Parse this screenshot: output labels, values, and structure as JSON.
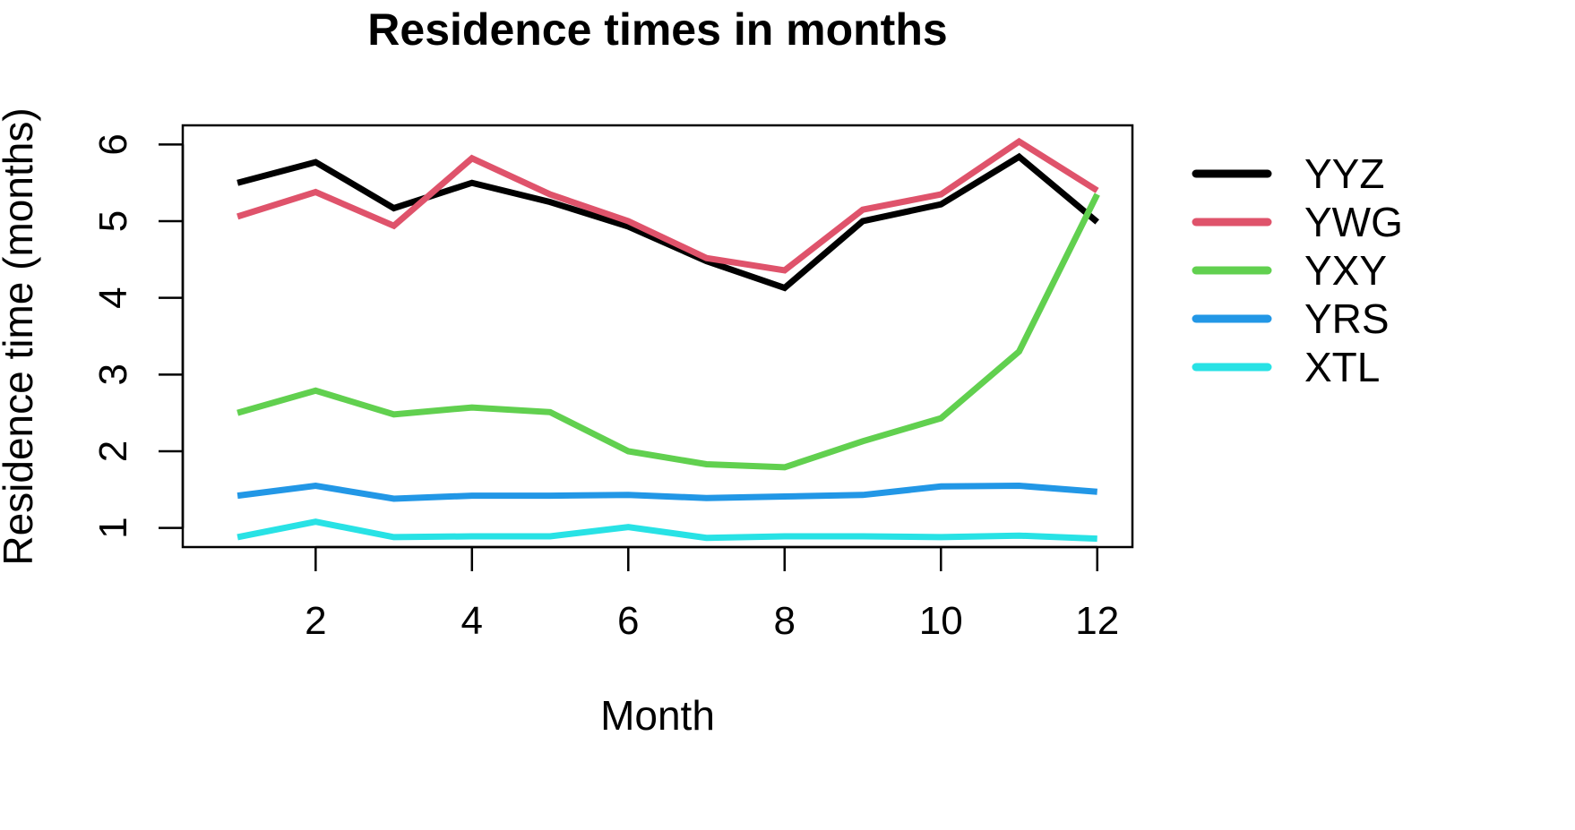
{
  "chart_data": {
    "type": "line",
    "title": "Residence times in months",
    "xlabel": "Month",
    "ylabel": "Residence time (months)",
    "x": [
      1,
      2,
      3,
      4,
      5,
      6,
      7,
      8,
      9,
      10,
      11,
      12
    ],
    "x_ticks": [
      "2",
      "4",
      "6",
      "8",
      "10",
      "12"
    ],
    "y_ticks": [
      "1",
      "2",
      "3",
      "4",
      "5",
      "6"
    ],
    "xlim": [
      0.3,
      12.45
    ],
    "ylim": [
      0.75,
      6.25
    ],
    "grid": false,
    "legend_position": "right",
    "series": [
      {
        "name": "YYZ",
        "color": "#000000",
        "values": [
          5.5,
          5.77,
          5.17,
          5.5,
          5.25,
          4.93,
          4.48,
          4.13,
          5.0,
          5.22,
          5.84,
          4.99
        ]
      },
      {
        "name": "YWG",
        "color": "#DF536B",
        "values": [
          5.06,
          5.38,
          4.94,
          5.82,
          5.35,
          5.0,
          4.52,
          4.36,
          5.15,
          5.35,
          6.04,
          5.4
        ]
      },
      {
        "name": "YXY",
        "color": "#61D04F",
        "values": [
          2.5,
          2.79,
          2.48,
          2.57,
          2.51,
          2.0,
          1.83,
          1.79,
          2.13,
          2.43,
          3.3,
          5.35
        ]
      },
      {
        "name": "YRS",
        "color": "#2297E6",
        "values": [
          1.42,
          1.55,
          1.38,
          1.42,
          1.42,
          1.43,
          1.39,
          1.41,
          1.43,
          1.54,
          1.55,
          1.47
        ]
      },
      {
        "name": "XTL",
        "color": "#28E2E5",
        "values": [
          0.88,
          1.08,
          0.88,
          0.89,
          0.89,
          1.01,
          0.87,
          0.89,
          0.89,
          0.88,
          0.9,
          0.86
        ]
      }
    ]
  }
}
